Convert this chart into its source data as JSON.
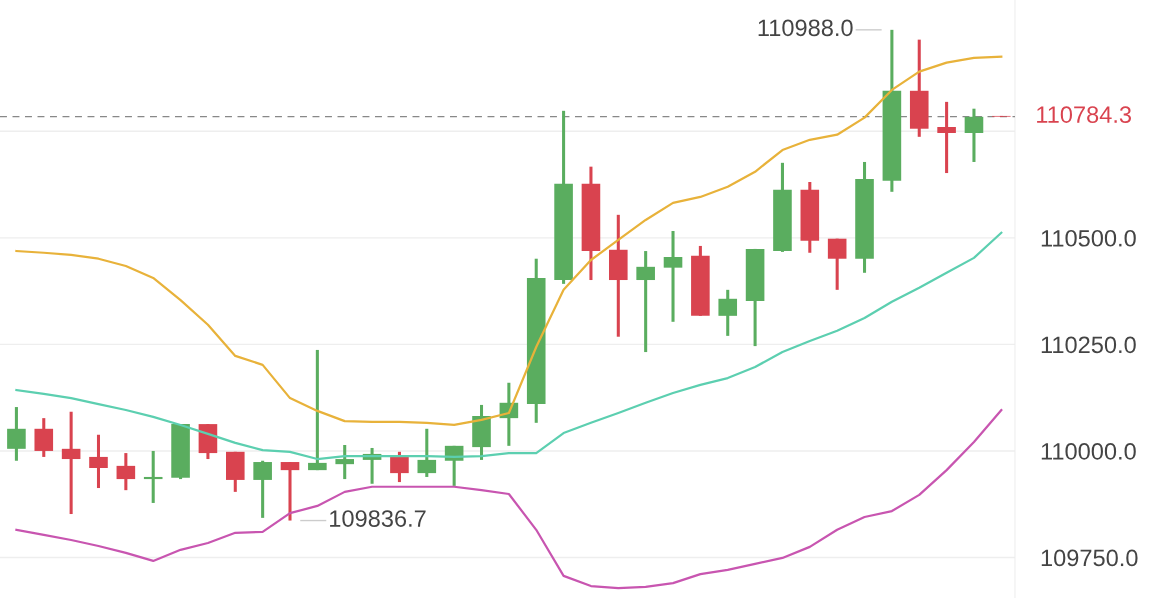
{
  "chart_data": {
    "type": "candlestick",
    "categories": [
      null,
      null,
      null,
      null,
      null,
      null,
      null,
      null,
      null,
      null,
      null,
      null,
      null,
      null,
      null,
      null,
      null,
      null,
      null,
      null,
      null,
      null,
      null,
      null,
      null,
      null,
      null,
      null,
      null,
      null,
      null,
      null,
      null,
      null,
      null,
      null,
      null
    ],
    "ohlc": [
      [
        110005,
        110103,
        109977,
        110052
      ],
      [
        110052,
        110077,
        109986,
        110000
      ],
      [
        110005,
        110092,
        109852,
        109981
      ],
      [
        109986,
        110038,
        109913,
        109960
      ],
      [
        109965,
        109995,
        109908,
        109934
      ],
      [
        109934,
        110000,
        109878,
        109939
      ],
      [
        109937,
        110063,
        109934,
        110063
      ],
      [
        110063,
        110063,
        109981,
        109995
      ],
      [
        109998,
        109998,
        109904,
        109932
      ],
      [
        109932,
        109977,
        109843,
        109974
      ],
      [
        109974,
        109974,
        109836.7,
        109955
      ],
      [
        109955,
        110237,
        109955,
        109972
      ],
      [
        109969,
        110014,
        109934,
        109981
      ],
      [
        109979,
        110007,
        109923,
        109993
      ],
      [
        109988,
        109998,
        109927,
        109948
      ],
      [
        109948,
        110052,
        109939,
        109979
      ],
      [
        109977,
        110012,
        109918,
        110012
      ],
      [
        110009,
        110108,
        109979,
        110082
      ],
      [
        110077,
        110160,
        110012,
        110113
      ],
      [
        110110,
        110451,
        110066,
        110406
      ],
      [
        110401,
        110798,
        110392,
        110627
      ],
      [
        110627,
        110667,
        110401,
        110469
      ],
      [
        110472,
        110554,
        110268,
        110401
      ],
      [
        110401,
        110469,
        110232,
        110432
      ],
      [
        110430,
        110516,
        110303,
        110455
      ],
      [
        110458,
        110481,
        110317,
        110317
      ],
      [
        110317,
        110378,
        110270,
        110357
      ],
      [
        110352,
        110474,
        110246,
        110474
      ],
      [
        110469,
        110676,
        110467,
        110613
      ],
      [
        110613,
        110631,
        110465,
        110493
      ],
      [
        110498,
        110498,
        110378,
        110451
      ],
      [
        110451,
        110678,
        110418,
        110638
      ],
      [
        110634,
        110988.0,
        110608,
        110845
      ],
      [
        110845,
        110965,
        110737,
        110756
      ],
      [
        110760,
        110819,
        110652,
        110746
      ],
      [
        110746,
        110803,
        110678,
        110784
      ],
      [
        110786,
        110786,
        110784.3,
        110784.3
      ]
    ],
    "colors": [
      "#5aad5f",
      "#d9434f",
      "#d9434f",
      "#d9434f",
      "#d9434f",
      "#5aad5f",
      "#5aad5f",
      "#d9434f",
      "#d9434f",
      "#5aad5f",
      "#d9434f",
      "#5aad5f",
      "#5aad5f",
      "#5aad5f",
      "#d9434f",
      "#5aad5f",
      "#5aad5f",
      "#5aad5f",
      "#5aad5f",
      "#5aad5f",
      "#5aad5f",
      "#d9434f",
      "#d9434f",
      "#5aad5f",
      "#5aad5f",
      "#d9434f",
      "#5aad5f",
      "#5aad5f",
      "#5aad5f",
      "#d9434f",
      "#d9434f",
      "#5aad5f",
      "#5aad5f",
      "#d9434f",
      "#d9434f",
      "#5aad5f",
      "#d9434f"
    ],
    "series": [
      {
        "type": "line",
        "color": "#e8b23a",
        "values": [
          110469,
          110465,
          110460,
          110451,
          110434,
          110406,
          110354,
          110296,
          110223,
          110202,
          110124,
          110094,
          110070,
          110068,
          110068,
          110066,
          110061,
          110073,
          110089,
          110244,
          110378,
          110448,
          110495,
          110542,
          110582,
          110596,
          110620,
          110655,
          110706,
          110730,
          110742,
          110782,
          110847,
          110890,
          110911,
          110922,
          110925
        ]
      },
      {
        "type": "line",
        "color": "#5ccfb0",
        "values": [
          110143,
          110134,
          110124,
          110110,
          110096,
          110080,
          110061,
          110040,
          110019,
          110002,
          109998,
          109981,
          109988,
          109988,
          109988,
          109988,
          109986,
          109988,
          109995,
          109995,
          110042,
          110066,
          110089,
          110113,
          110136,
          110155,
          110171,
          110197,
          110232,
          110258,
          110282,
          110312,
          110350,
          110383,
          110418,
          110453,
          110512
        ]
      },
      {
        "type": "line",
        "color": "#c855b0",
        "values": [
          109815,
          109803,
          109791,
          109777,
          109761,
          109742,
          109768,
          109784,
          109808,
          109810,
          109854,
          109871,
          109904,
          109916,
          109916,
          109916,
          109916,
          109908,
          109899,
          109815,
          109707,
          109683,
          109678,
          109681,
          109690,
          109711,
          109721,
          109735,
          109749,
          109775,
          109815,
          109845,
          109859,
          109897,
          109955,
          110021,
          110096
        ]
      }
    ],
    "ylim": [
      109655,
      111058
    ],
    "yticks": [
      {
        "value": 109750,
        "label": "109750.0"
      },
      {
        "value": 110000,
        "label": "110000.0"
      },
      {
        "value": 110250,
        "label": "110250.0"
      },
      {
        "value": 110500,
        "label": "110500.0"
      },
      {
        "value": 110750,
        "label": null
      }
    ],
    "grid": "y",
    "ref_lines": [
      {
        "axis": "y",
        "value": 110784.3,
        "label": "110784.3",
        "color": "#888888",
        "line_style": "dashed"
      }
    ],
    "annotations": [
      "110988.0",
      "109836.7"
    ]
  }
}
